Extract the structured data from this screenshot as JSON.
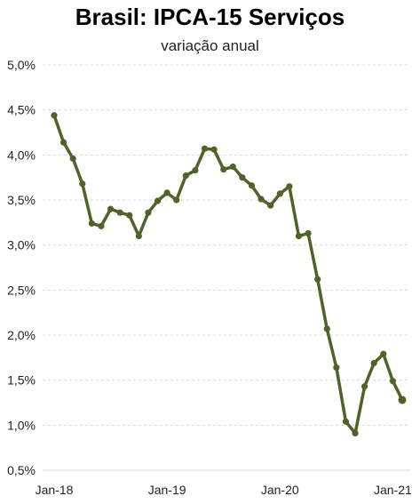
{
  "chart_data": {
    "type": "line",
    "title": "Brasil: IPCA-15 Serviços",
    "subtitle": "variação anual",
    "xlabel": "",
    "ylabel": "",
    "ylim": [
      0.5,
      5.0
    ],
    "y_ticks": [
      {
        "value": 5.0,
        "label": "5,0%"
      },
      {
        "value": 4.5,
        "label": "4,5%"
      },
      {
        "value": 4.0,
        "label": "4,0%"
      },
      {
        "value": 3.5,
        "label": "3,5%"
      },
      {
        "value": 3.0,
        "label": "3,0%"
      },
      {
        "value": 2.5,
        "label": "2,5%"
      },
      {
        "value": 2.0,
        "label": "2,0%"
      },
      {
        "value": 1.5,
        "label": "1,5%"
      },
      {
        "value": 1.0,
        "label": "1,0%"
      },
      {
        "value": 0.5,
        "label": "0,5%"
      }
    ],
    "x_ticks": [
      {
        "index": 0,
        "label": "Jan-18"
      },
      {
        "index": 12,
        "label": "Jan-19"
      },
      {
        "index": 24,
        "label": "Jan-20"
      },
      {
        "index": 36,
        "label": "Jan-21"
      }
    ],
    "grid": true,
    "line_color": "#4f6228",
    "series": [
      {
        "values": [
          4.44,
          4.14,
          3.96,
          3.68,
          3.24,
          3.21,
          3.4,
          3.36,
          3.33,
          3.1,
          3.36,
          3.49,
          3.58,
          3.5,
          3.77,
          3.83,
          4.07,
          4.06,
          3.84,
          3.87,
          3.75,
          3.66,
          3.51,
          3.44,
          3.57,
          3.65,
          3.1,
          3.13,
          2.62,
          2.07,
          1.64,
          1.04,
          0.91,
          1.43,
          1.69,
          1.79,
          1.49,
          1.28
        ]
      }
    ]
  }
}
